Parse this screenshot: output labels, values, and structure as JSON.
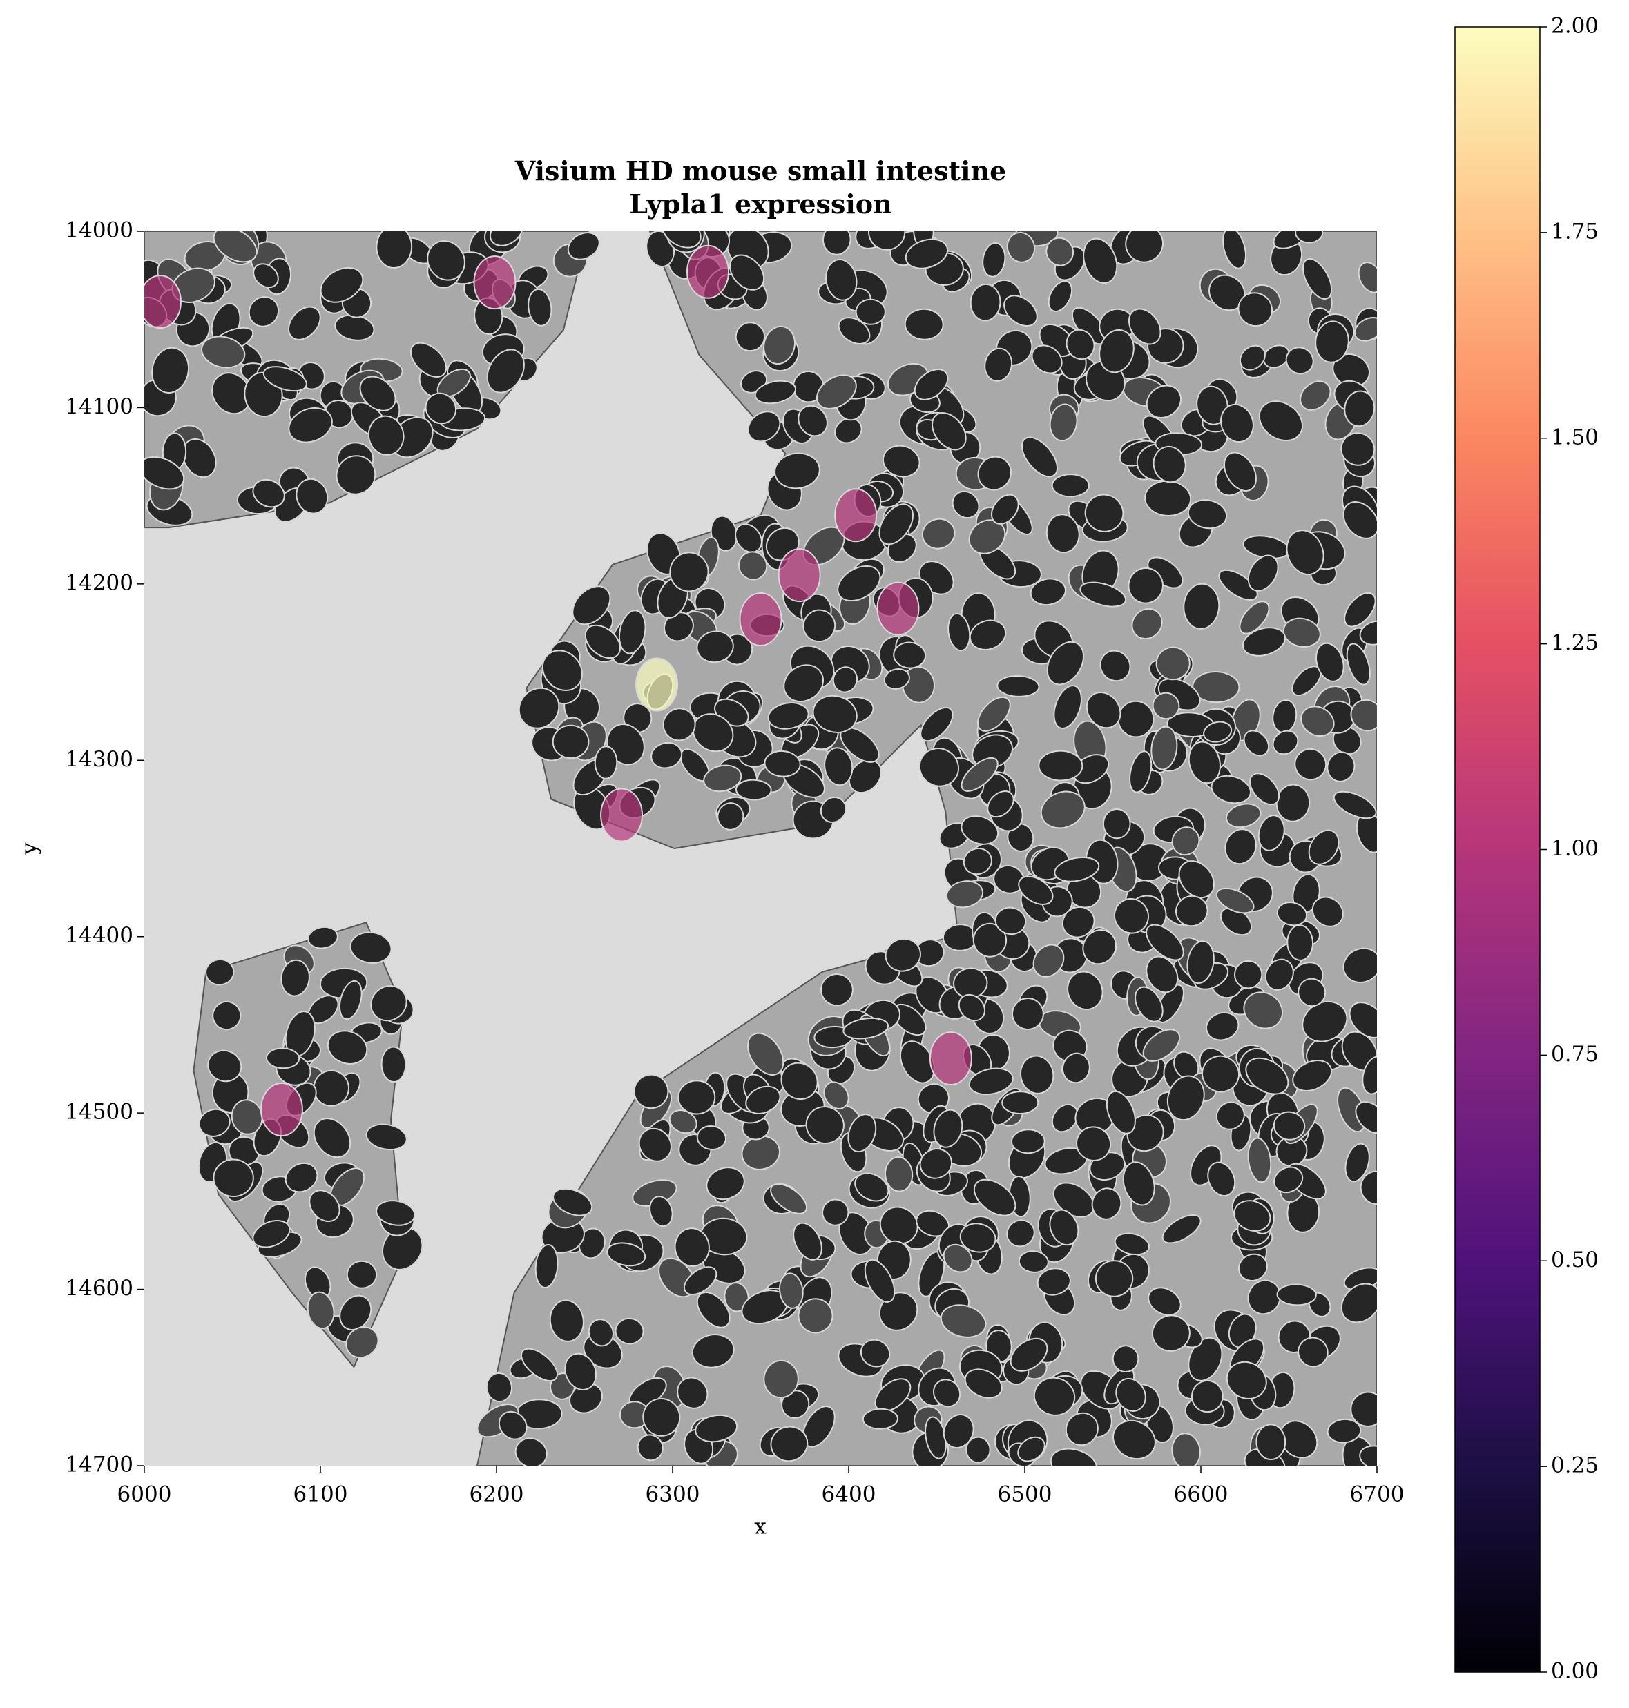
{
  "chart_data": {
    "type": "spatial",
    "title": "Visium HD mouse small intestine\nLypla1 expression",
    "xlabel": "x",
    "ylabel": "y",
    "xlim": [
      6000,
      6700
    ],
    "ylim": [
      14000,
      14700
    ],
    "y_inverted": true,
    "xticks": [
      6000,
      6100,
      6200,
      6300,
      6400,
      6500,
      6600,
      6700
    ],
    "yticks": [
      14000,
      14100,
      14200,
      14300,
      14400,
      14500,
      14600,
      14700
    ],
    "colormap": "magma",
    "clim": [
      0,
      2
    ],
    "cticks": [
      {
        "value": 0,
        "label": "0.00"
      },
      {
        "value": 0.25,
        "label": "0.25"
      },
      {
        "value": 0.5,
        "label": "0.50"
      },
      {
        "value": 0.75,
        "label": "0.75"
      },
      {
        "value": 1,
        "label": "1.00"
      },
      {
        "value": 1.25,
        "label": "1.25"
      },
      {
        "value": 1.5,
        "label": "1.50"
      },
      {
        "value": 1.75,
        "label": "1.75"
      },
      {
        "value": 2,
        "label": "2.00"
      }
    ],
    "x": [
      6009,
      6199,
      6320,
      6404,
      6372,
      6428,
      6350,
      6291,
      6271,
      6458,
      6078
    ],
    "y": [
      14040,
      14029,
      14023,
      14161,
      14195,
      14214,
      14220,
      14257,
      14331,
      14469,
      14498
    ],
    "values": [
      1,
      1,
      1,
      1,
      1,
      1,
      1,
      2,
      1,
      1,
      1
    ]
  }
}
